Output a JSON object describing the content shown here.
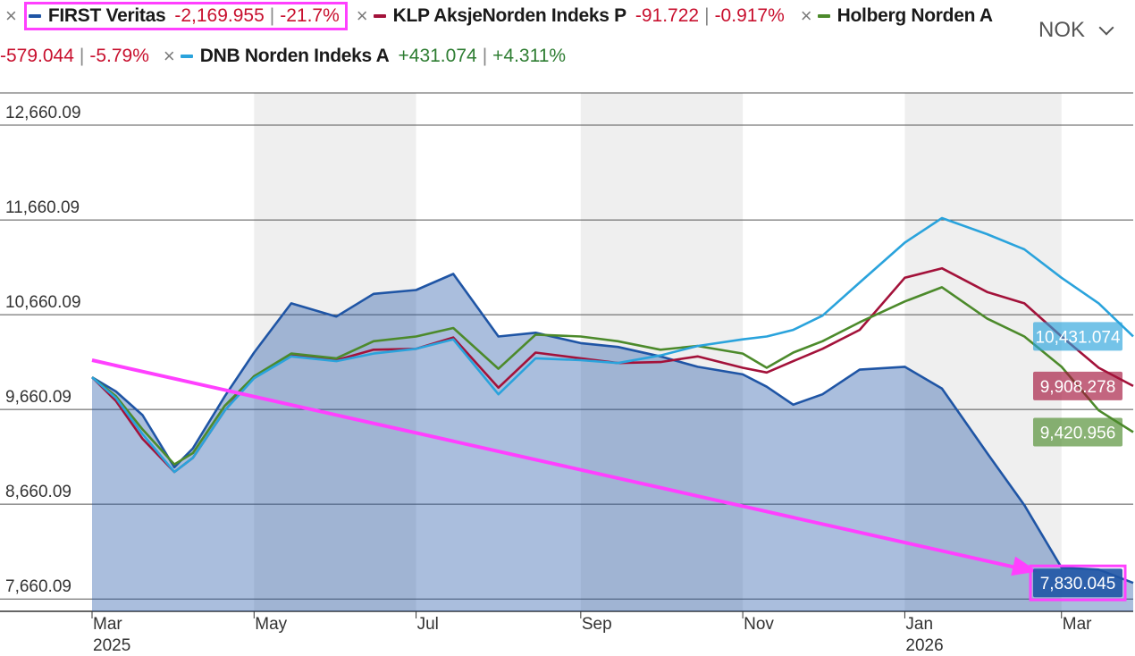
{
  "legend": {
    "items": [
      {
        "name": "FIRST Veritas",
        "change": "-2,169.955",
        "pct": "-21.7%",
        "color": "#1f55a5",
        "sign": "neg"
      },
      {
        "name": "KLP AksjeNorden Indeks P",
        "change": "-91.722",
        "pct": "-0.917%",
        "color": "#a3123a",
        "sign": "neg"
      },
      {
        "name": "Holberg Norden A",
        "change": "-579.044",
        "pct": "-5.79%",
        "color": "#4c8a2b",
        "sign": "neg"
      },
      {
        "name": "DNB Norden Indeks A",
        "change": "+431.074",
        "pct": "+4.311%",
        "color": "#2aa3dc",
        "sign": "pos"
      }
    ],
    "separator": "|",
    "remove_glyph": "×"
  },
  "currency": {
    "label": "NOK",
    "icon": "chevron-down-icon"
  },
  "chart_data": {
    "type": "line",
    "y_ticks": [
      "12,660.09",
      "11,660.09",
      "10,660.09",
      "9,660.09",
      "8,660.09",
      "7,660.09"
    ],
    "y_tick_values": [
      12660.09,
      11660.09,
      10660.09,
      9660.09,
      8660.09,
      7660.09
    ],
    "ylim": [
      7530,
      13000
    ],
    "x_ticks": [
      {
        "label": "Mar",
        "year": "2025",
        "date": "2025-03-01"
      },
      {
        "label": "May",
        "year": "",
        "date": "2025-05-01"
      },
      {
        "label": "Jul",
        "year": "",
        "date": "2025-07-01"
      },
      {
        "label": "Sep",
        "year": "",
        "date": "2025-09-01"
      },
      {
        "label": "Nov",
        "year": "",
        "date": "2025-11-01"
      },
      {
        "label": "Jan",
        "year": "2026",
        "date": "2026-01-01"
      },
      {
        "label": "Mar",
        "year": "",
        "date": "2026-03-01"
      }
    ],
    "xlim": [
      "2025-03-01",
      "2026-03-28"
    ],
    "shaded_bands": [
      [
        "2025-05-01",
        "2025-07-01"
      ],
      [
        "2025-09-01",
        "2025-11-01"
      ],
      [
        "2026-01-01",
        "2026-03-01"
      ]
    ],
    "grid": "horizontal",
    "series": [
      {
        "name": "FIRST Veritas",
        "color": "#1f55a5",
        "area": true,
        "end_label": "7,830.045",
        "highlight": true,
        "x": [
          "2025-03-01",
          "2025-03-10",
          "2025-03-20",
          "2025-04-01",
          "2025-04-08",
          "2025-04-20",
          "2025-05-01",
          "2025-05-15",
          "2025-06-01",
          "2025-06-15",
          "2025-07-01",
          "2025-07-15",
          "2025-08-01",
          "2025-08-15",
          "2025-09-01",
          "2025-09-15",
          "2025-10-01",
          "2025-10-15",
          "2025-11-01",
          "2025-11-10",
          "2025-11-20",
          "2025-12-01",
          "2025-12-15",
          "2026-01-01",
          "2026-01-15",
          "2026-02-01",
          "2026-02-15",
          "2026-03-01",
          "2026-03-15",
          "2026-03-28"
        ],
        "y": [
          10000,
          9850,
          9600,
          9050,
          9250,
          9800,
          10260,
          10780,
          10640,
          10880,
          10920,
          11090,
          10430,
          10470,
          10360,
          10320,
          10220,
          10110,
          10030,
          9900,
          9710,
          9820,
          10080,
          10110,
          9880,
          9200,
          8650,
          7990,
          7970,
          7830
        ]
      },
      {
        "name": "KLP AksjeNorden Indeks P",
        "color": "#a3123a",
        "area": false,
        "end_label": "9,908.278",
        "x": [
          "2025-03-01",
          "2025-03-10",
          "2025-03-20",
          "2025-04-01",
          "2025-04-08",
          "2025-04-20",
          "2025-05-01",
          "2025-05-15",
          "2025-06-01",
          "2025-06-15",
          "2025-07-01",
          "2025-07-15",
          "2025-08-01",
          "2025-08-15",
          "2025-09-01",
          "2025-09-15",
          "2025-10-01",
          "2025-10-15",
          "2025-11-01",
          "2025-11-10",
          "2025-11-20",
          "2025-12-01",
          "2025-12-15",
          "2026-01-01",
          "2026-01-15",
          "2026-02-01",
          "2026-02-15",
          "2026-03-01",
          "2026-03-15",
          "2026-03-28"
        ],
        "y": [
          10000,
          9750,
          9350,
          9000,
          9150,
          9650,
          10010,
          10230,
          10180,
          10290,
          10300,
          10420,
          9890,
          10260,
          10200,
          10150,
          10160,
          10220,
          10100,
          10050,
          10170,
          10300,
          10500,
          11050,
          11150,
          10900,
          10780,
          10430,
          10100,
          9908
        ]
      },
      {
        "name": "Holberg Norden A",
        "color": "#4c8a2b",
        "area": false,
        "end_label": "9,420.956",
        "x": [
          "2025-03-01",
          "2025-03-10",
          "2025-03-20",
          "2025-04-01",
          "2025-04-08",
          "2025-04-20",
          "2025-05-01",
          "2025-05-15",
          "2025-06-01",
          "2025-06-15",
          "2025-07-01",
          "2025-07-15",
          "2025-08-01",
          "2025-08-15",
          "2025-09-01",
          "2025-09-15",
          "2025-10-01",
          "2025-10-15",
          "2025-11-01",
          "2025-11-10",
          "2025-11-20",
          "2025-12-01",
          "2025-12-15",
          "2026-01-01",
          "2026-01-15",
          "2026-02-01",
          "2026-02-15",
          "2026-03-01",
          "2026-03-15",
          "2026-03-28"
        ],
        "y": [
          10000,
          9800,
          9450,
          9080,
          9200,
          9700,
          10010,
          10250,
          10200,
          10380,
          10430,
          10520,
          10090,
          10450,
          10430,
          10380,
          10290,
          10330,
          10250,
          10100,
          10260,
          10380,
          10580,
          10800,
          10950,
          10620,
          10430,
          10110,
          9650,
          9421
        ]
      },
      {
        "name": "DNB Norden Indeks A",
        "color": "#2aa3dc",
        "area": false,
        "end_label": "10,431.074",
        "x": [
          "2025-03-01",
          "2025-03-10",
          "2025-03-20",
          "2025-04-01",
          "2025-04-08",
          "2025-04-20",
          "2025-05-01",
          "2025-05-15",
          "2025-06-01",
          "2025-06-15",
          "2025-07-01",
          "2025-07-15",
          "2025-08-01",
          "2025-08-15",
          "2025-09-01",
          "2025-09-15",
          "2025-10-01",
          "2025-10-15",
          "2025-11-01",
          "2025-11-10",
          "2025-11-20",
          "2025-12-01",
          "2025-12-15",
          "2026-01-01",
          "2026-01-15",
          "2026-02-01",
          "2026-02-15",
          "2026-03-01",
          "2026-03-15",
          "2026-03-28"
        ],
        "y": [
          10000,
          9780,
          9400,
          9000,
          9150,
          9650,
          9990,
          10220,
          10170,
          10250,
          10300,
          10400,
          9820,
          10200,
          10180,
          10150,
          10230,
          10330,
          10400,
          10430,
          10500,
          10650,
          11000,
          11420,
          11680,
          11510,
          11350,
          11050,
          10780,
          10431
        ]
      }
    ],
    "annotation": {
      "type": "arrow",
      "from": [
        "2025-03-01",
        10180
      ],
      "to": [
        "2026-02-20",
        7950
      ],
      "color": "#ff40ff"
    }
  }
}
